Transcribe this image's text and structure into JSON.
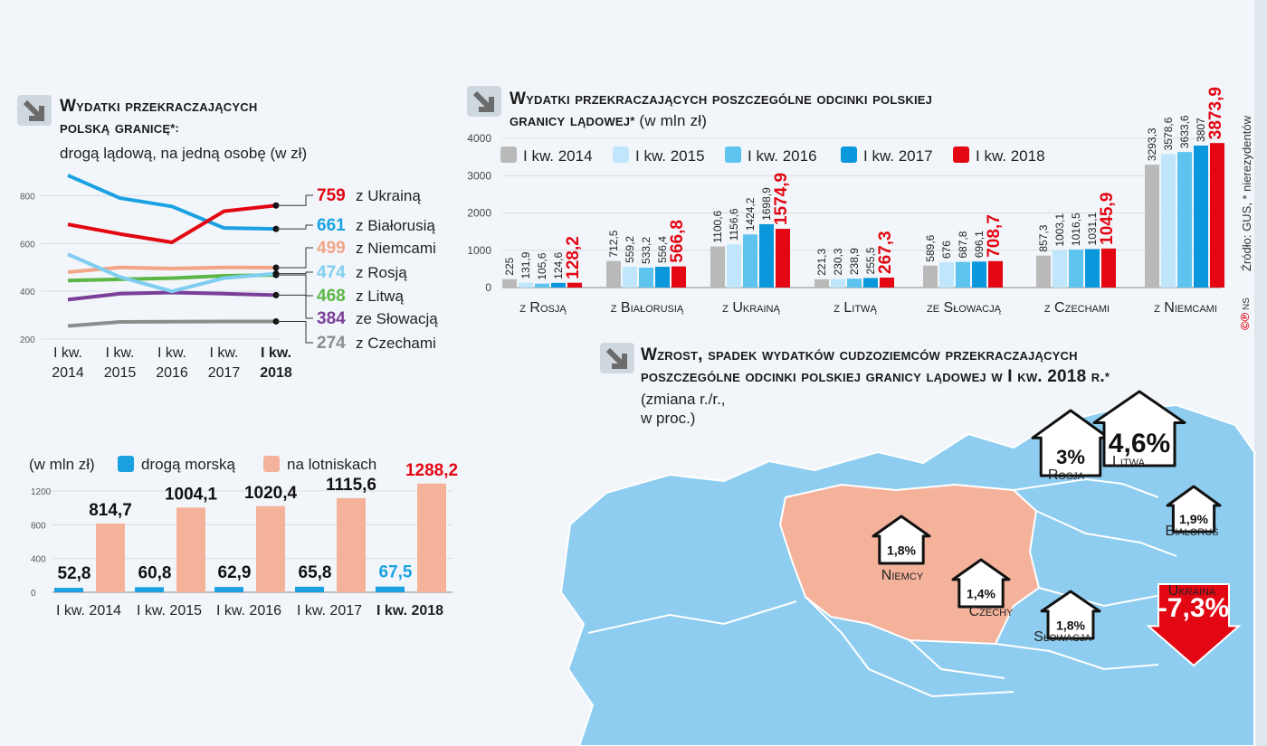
{
  "colors": {
    "ukraina": "#e30613",
    "bialorus": "#1ba1e2",
    "niemcy": "#f2a587",
    "rosja": "#7fcdf0",
    "litwa": "#5cb646",
    "slowacja": "#7b3f99",
    "czechy": "#8c8c8c",
    "q2014": "#b9b9b9",
    "q2015": "#bfe6fa",
    "q2016": "#5cc4ef",
    "q2017": "#0b97dc",
    "q2018": "#e30613",
    "sea": "#1ba1e2",
    "air": "#f4b29b",
    "map_blue": "#8fcdf0",
    "map_pl": "#f4b29b"
  },
  "icons": [
    "arrow-diagonal-icon"
  ],
  "panel1": {
    "title_line1": "Wydatki przekraczających",
    "title_line2": "polską granicę",
    "title_mark": "*:",
    "subtitle": "drogą lądową, na jedną osobę (w zł)"
  },
  "panel2": {
    "title_line1": "Wydatki przekraczających poszczególne odcinki polskiej",
    "title_line2": "granicy lądowej",
    "title_mark": "*",
    "unit": " (w mln zł)"
  },
  "panel3": {
    "title_line1": "Wzrost, spadek wydatków cudzoziemców przekraczających",
    "title_line2": "poszczególne odcinki polskiej granicy lądowej w I kw. 2018 r.",
    "title_mark": "*",
    "note_line1": "(zmiana r./r.,",
    "note_line2": "w proc.)"
  },
  "source": {
    "text": "Źródło: GUS, * nierezydentów",
    "credit": "NS"
  },
  "chart_data": [
    {
      "type": "line",
      "x": [
        "I kw. 2014",
        "I kw. 2015",
        "I kw. 2016",
        "I kw. 2017",
        "I kw. 2018"
      ],
      "x_line1": [
        "I kw.",
        "I kw.",
        "I kw.",
        "I kw.",
        "I kw."
      ],
      "x_line2": [
        "2014",
        "2015",
        "2016",
        "2017",
        "2018"
      ],
      "ylim": [
        200,
        900
      ],
      "yticks": [
        "800",
        "600",
        "400",
        "200"
      ],
      "series": [
        {
          "key": "ukraina",
          "name": "z Ukrainą",
          "label": "759",
          "values": [
            680,
            640,
            605,
            735,
            759
          ]
        },
        {
          "key": "bialorus",
          "name": "z Białorusią",
          "label": "661",
          "values": [
            885,
            790,
            755,
            665,
            661
          ]
        },
        {
          "key": "niemcy",
          "name": "z Niemcami",
          "label": "499",
          "values": [
            480,
            500,
            495,
            500,
            499
          ]
        },
        {
          "key": "rosja",
          "name": "z Rosją",
          "label": "474",
          "values": [
            555,
            460,
            400,
            455,
            474
          ]
        },
        {
          "key": "litwa",
          "name": "z Litwą",
          "label": "468",
          "values": [
            445,
            450,
            455,
            465,
            468
          ]
        },
        {
          "key": "slowacja",
          "name": "ze Słowacją",
          "label": "384",
          "values": [
            365,
            390,
            395,
            390,
            384
          ]
        },
        {
          "key": "czechy",
          "name": "z Czechami",
          "label": "274",
          "values": [
            255,
            272,
            273,
            274,
            274
          ]
        }
      ]
    },
    {
      "type": "bar",
      "unit": "(w mln zł)",
      "categories": [
        "I kw. 2014",
        "I kw. 2015",
        "I kw. 2016",
        "I kw. 2017",
        "I kw. 2018"
      ],
      "ylim": [
        0,
        1300
      ],
      "yticks": [
        "1200",
        "800",
        "400",
        "0"
      ],
      "series": [
        {
          "key": "sea",
          "name": "drogą morską",
          "values": [
            52.8,
            60.8,
            62.9,
            65.8,
            67.5
          ],
          "labels": [
            "52,8",
            "60,8",
            "62,9",
            "65,8",
            "67,5"
          ]
        },
        {
          "key": "air",
          "name": "na lotniskach",
          "values": [
            814.7,
            1004.1,
            1020.4,
            1115.6,
            1288.2
          ],
          "labels": [
            "814,7",
            "1004,1",
            "1020,4",
            "1115,6",
            "1288,2"
          ]
        }
      ]
    },
    {
      "type": "bar",
      "categories": [
        "z Rosją",
        "z Białorusią",
        "z Ukrainą",
        "z Litwą",
        "ze Słowacją",
        "z Czechami",
        "z Niemcami"
      ],
      "ylim": [
        0,
        4000
      ],
      "yticks": [
        "4000",
        "3000",
        "2000",
        "1000",
        "0"
      ],
      "series": [
        {
          "key": "q2014",
          "name": "I kw. 2014",
          "values": [
            225,
            712.5,
            1100.6,
            221.3,
            589.6,
            857.3,
            3293.3
          ],
          "labels": [
            "225",
            "712,5",
            "1100,6",
            "221,3",
            "589,6",
            "857,3",
            "3293,3"
          ]
        },
        {
          "key": "q2015",
          "name": "I kw. 2015",
          "values": [
            131.9,
            559.2,
            1156.6,
            230.3,
            676,
            1003.1,
            3578.6
          ],
          "labels": [
            "131,9",
            "559,2",
            "1156,6",
            "230,3",
            "676",
            "1003,1",
            "3578,6"
          ]
        },
        {
          "key": "q2016",
          "name": "I kw. 2016",
          "values": [
            105.6,
            533.2,
            1424.2,
            238.9,
            687.8,
            1016.5,
            3633.6
          ],
          "labels": [
            "105,6",
            "533,2",
            "1424,2",
            "238,9",
            "687,8",
            "1016,5",
            "3633,6"
          ]
        },
        {
          "key": "q2017",
          "name": "I kw. 2017",
          "values": [
            124.6,
            556.4,
            1698.9,
            255.5,
            696.1,
            1031.1,
            3807
          ],
          "labels": [
            "124,6",
            "556,4",
            "1698,9",
            "255,5",
            "696,1",
            "1031,1",
            "3807"
          ]
        },
        {
          "key": "q2018",
          "name": "I kw. 2018",
          "values": [
            128.2,
            566.8,
            1574.9,
            267.3,
            708.7,
            1045.9,
            3873.9
          ],
          "labels": [
            "128,2",
            "566,8",
            "1574,9",
            "267,3",
            "708,7",
            "1045,9",
            "3873,9"
          ]
        }
      ]
    },
    {
      "type": "map",
      "regions": [
        {
          "key": "rosja",
          "name": "Rosja",
          "change": "3%",
          "direction": "up"
        },
        {
          "key": "litwa",
          "name": "Litwa",
          "change": "4,6%",
          "direction": "up"
        },
        {
          "key": "bialorus",
          "name": "Białoruś",
          "change": "1,9%",
          "direction": "up"
        },
        {
          "key": "niemcy",
          "name": "Niemcy",
          "change": "1,8%",
          "direction": "up"
        },
        {
          "key": "czechy",
          "name": "Czechy",
          "change": "1,4%",
          "direction": "up"
        },
        {
          "key": "slowacja",
          "name": "Słowacja",
          "change": "1,8%",
          "direction": "up"
        },
        {
          "key": "ukraina",
          "name": "Ukraina",
          "change": "-7,3%",
          "direction": "down"
        }
      ]
    }
  ]
}
